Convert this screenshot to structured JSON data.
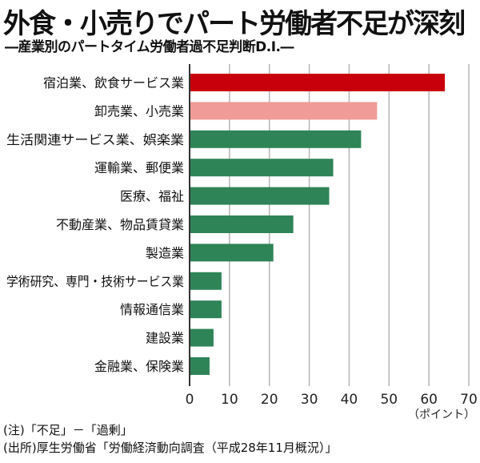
{
  "chart_data": {
    "type": "bar",
    "orientation": "horizontal",
    "title": "外食・小売りでパート労働者不足が深刻",
    "subtitle": "―産業別のパートタイム労働者過不足判断D.I.―",
    "categories": [
      "宿泊業、飲食サービス業",
      "卸売業、小売業",
      "生活関連サービス業、娯楽業",
      "運輸業、郵便業",
      "医療、福祉",
      "不動産業、物品賃貸業",
      "製造業",
      "学術研究、専門・技術サービス業",
      "情報通信業",
      "建設業",
      "金融業、保険業"
    ],
    "values": [
      64,
      47,
      43,
      36,
      35,
      26,
      21,
      8,
      8,
      6,
      5
    ],
    "bar_colors": [
      "#c8000b",
      "#f09b97",
      "#2e8457",
      "#2e8457",
      "#2e8457",
      "#2e8457",
      "#2e8457",
      "#2e8457",
      "#2e8457",
      "#2e8457",
      "#2e8457"
    ],
    "xlim": [
      0,
      70
    ],
    "xticks": [
      "0",
      "10",
      "20",
      "30",
      "40",
      "50",
      "60",
      "70"
    ],
    "xlabel": "（ポイント）",
    "grid": true,
    "notes": [
      "(注)「不足」－「過剰」",
      "(出所)厚生労働省「労働経済動向調査（平成28年11月概況）」"
    ]
  }
}
